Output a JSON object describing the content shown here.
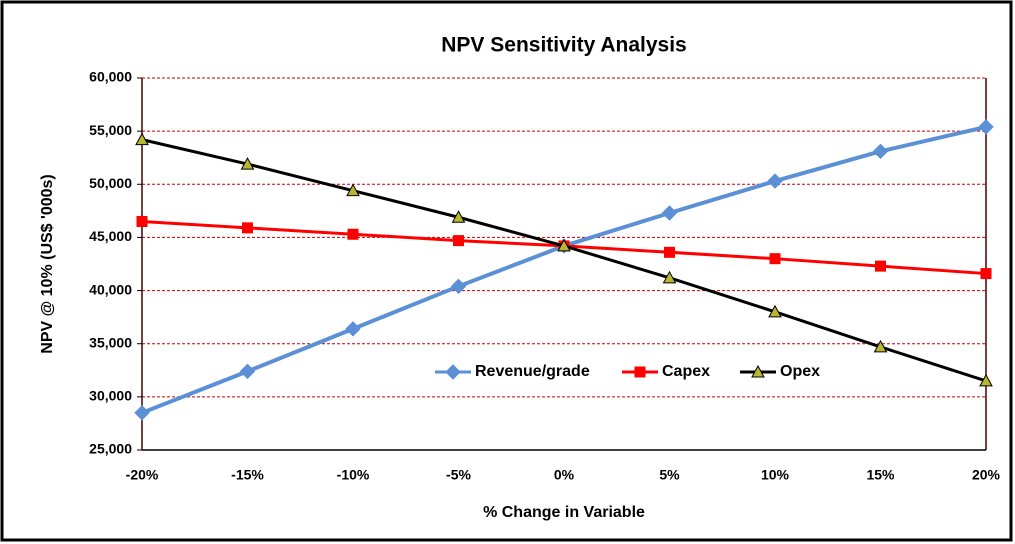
{
  "chart_data": {
    "type": "line",
    "title": "NPV Sensitivity Analysis",
    "x_label": "% Change in Variable",
    "y_label": "NPV @ 10% (US$ '000s)",
    "categories": [
      "-20%",
      "-15%",
      "-10%",
      "-5%",
      "0%",
      "5%",
      "10%",
      "15%",
      "20%"
    ],
    "series": [
      {
        "name": "Revenue/grade",
        "color": "#5b8fd6",
        "marker": "diamond",
        "values": [
          28500,
          32400,
          36400,
          40400,
          44200,
          47300,
          50300,
          53100,
          55400
        ]
      },
      {
        "name": "Capex",
        "color": "#ff0000",
        "marker": "square",
        "values": [
          46500,
          45900,
          45300,
          44700,
          44200,
          43600,
          43000,
          42300,
          41600
        ]
      },
      {
        "name": "Opex",
        "color": "#000000",
        "marker": "triangle",
        "values": [
          54200,
          51900,
          49400,
          46900,
          44200,
          41200,
          38000,
          34700,
          31500
        ]
      }
    ],
    "ylim": [
      25000,
      60000
    ],
    "yticks": [
      {
        "value": 25000,
        "label": "25,000"
      },
      {
        "value": 30000,
        "label": "30,000"
      },
      {
        "value": 35000,
        "label": "35,000"
      },
      {
        "value": 40000,
        "label": "40,000"
      },
      {
        "value": 45000,
        "label": "45,000"
      },
      {
        "value": 50000,
        "label": "50,000"
      },
      {
        "value": 55000,
        "label": "55,000"
      },
      {
        "value": 60000,
        "label": "60,000"
      }
    ],
    "grid": true
  }
}
